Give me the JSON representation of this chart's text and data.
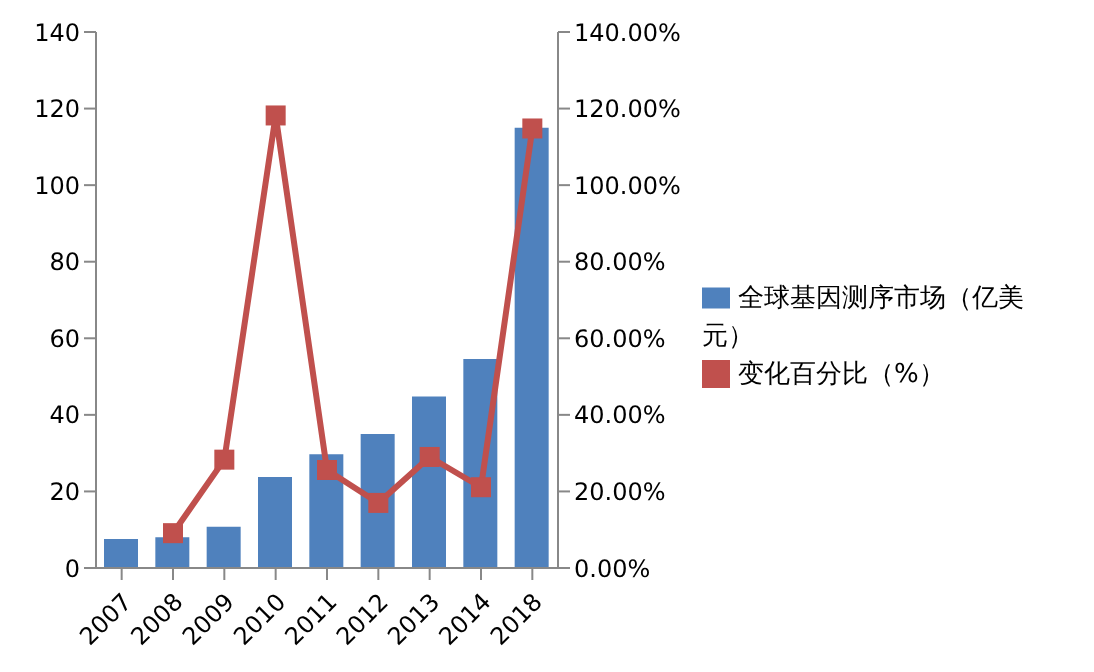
{
  "chart_data": {
    "type": "bar",
    "categories": [
      "2007",
      "2008",
      "2009",
      "2010",
      "2011",
      "2012",
      "2013",
      "2014",
      "2018"
    ],
    "series": [
      {
        "name": "全球基因测序市场（亿美元）",
        "color": "#4f81bd",
        "values": [
          7.6,
          8,
          10.8,
          23.8,
          29.7,
          35,
          44.8,
          54.6,
          115
        ]
      },
      {
        "name": "变化百分比（%）",
        "type": "line",
        "axis": "y2",
        "color": "#c0504d",
        "marker": "square",
        "values": [
          null,
          9.1,
          28.3,
          118.2,
          25.6,
          17,
          29,
          21.1,
          114.8
        ]
      }
    ],
    "ylim": [
      0,
      140
    ],
    "yticks": [
      0,
      20,
      40,
      60,
      80,
      100,
      120,
      140
    ],
    "y2lim": [
      0,
      140
    ],
    "y2ticks": [
      {
        "value": 0,
        "label": "0.00%"
      },
      {
        "value": 20,
        "label": "20.00%"
      },
      {
        "value": 40,
        "label": "40.00%"
      },
      {
        "value": 60,
        "label": "60.00%"
      },
      {
        "value": 80,
        "label": "80.00%"
      },
      {
        "value": 100,
        "label": "100.00%"
      },
      {
        "value": 120,
        "label": "120.00%"
      },
      {
        "value": 140,
        "label": "140.00%"
      }
    ],
    "grid": false,
    "legend": "right"
  }
}
